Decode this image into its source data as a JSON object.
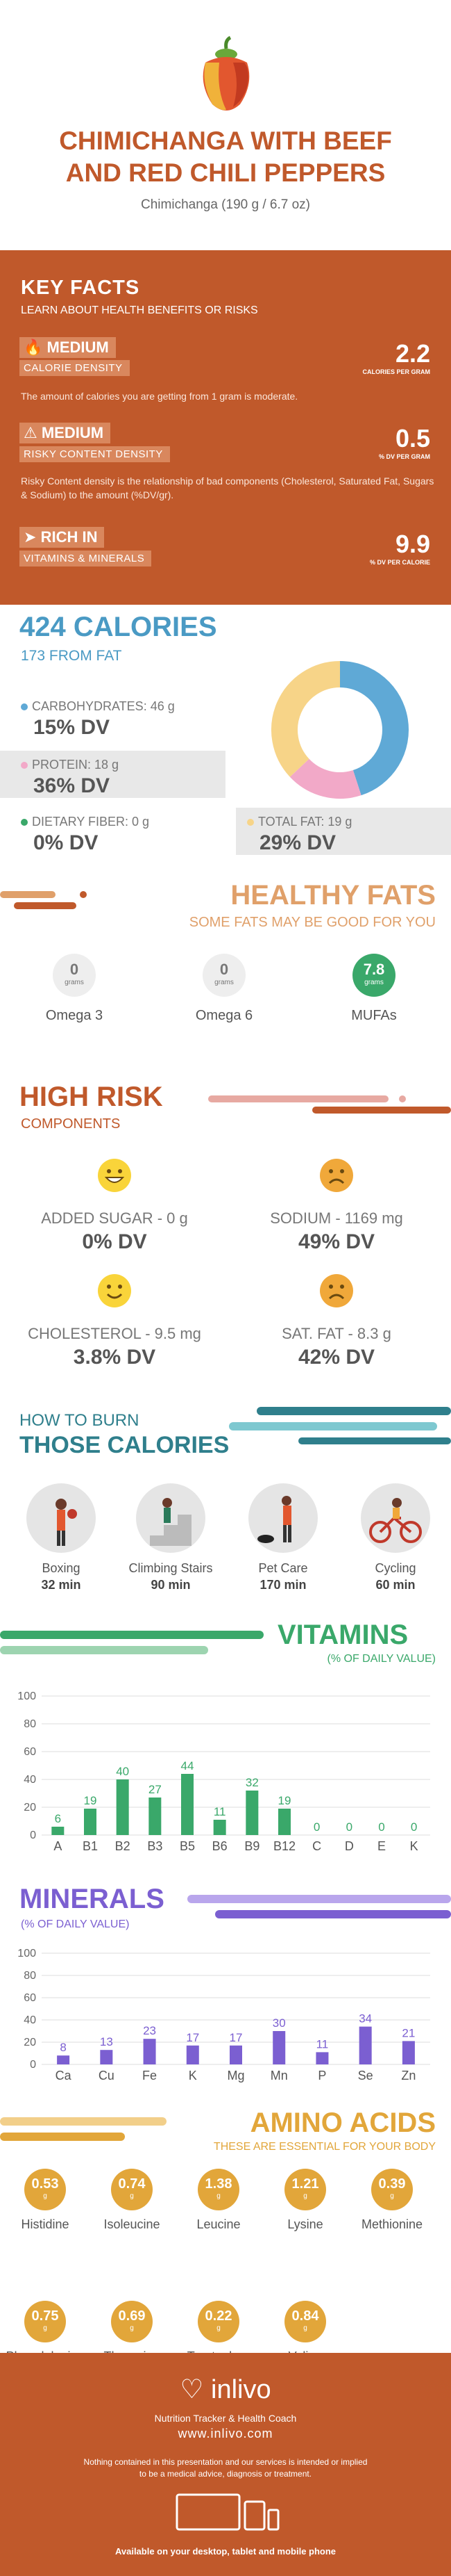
{
  "header": {
    "title_line1": "CHIMICHANGA WITH  BEEF",
    "title_line2": "AND RED CHILI PEPPERS",
    "subtitle": "Chimichanga (190 g / 6.7 oz)"
  },
  "key_facts": {
    "title": "KEY FACTS",
    "subtitle": "LEARN ABOUT HEALTH BENEFITS OR RISKS",
    "calorie": {
      "level": "MEDIUM",
      "label": "CALORIE DENSITY",
      "value": "2.2",
      "unit": "CALORIES PER GRAM",
      "desc": "The amount of calories you are getting from 1 gram is moderate."
    },
    "risky": {
      "level": "MEDIUM",
      "label": "RISKY CONTENT DENSITY",
      "value": "0.5",
      "unit": "% DV PER GRAM",
      "desc": "Risky Content density is the relationship of bad components (Cholesterol, Saturated Fat, Sugars & Sodium) to the amount (%DV/gr)."
    },
    "vitamins": {
      "level": "RICH  IN",
      "label": "VITAMINS & MINERALS",
      "value": "9.9",
      "unit": "% DV PER CALORIE"
    }
  },
  "calories": {
    "title": "424 CALORIES",
    "fat": "173 FROM FAT",
    "carbs_label": "CARBOHYDRATES: 46 g",
    "carbs_dv": "15% DV",
    "protein_label": "PROTEIN: 18 g",
    "protein_dv": "36% DV",
    "fiber_label": "DIETARY FIBER: 0 g",
    "fiber_dv": "0% DV",
    "fat_label": "TOTAL FAT: 19 g",
    "fat_dv": "29% DV",
    "donut": [
      {
        "name": "carbs",
        "value": 0.45,
        "color": "#5fa9d6"
      },
      {
        "name": "protein",
        "value": 0.18,
        "color": "#f2a9c8"
      },
      {
        "name": "fat",
        "value": 0.37,
        "color": "#f7d488"
      }
    ]
  },
  "healthy_fats": {
    "title": "HEALTHY FATS",
    "subtitle": "SOME FATS MAY BE GOOD FOR YOU",
    "items": [
      {
        "value": "0",
        "unit": "grams",
        "label": "Omega 3"
      },
      {
        "value": "0",
        "unit": "grams",
        "label": "Omega 6"
      },
      {
        "value": "7.8",
        "unit": "grams",
        "label": "MUFAs"
      }
    ]
  },
  "high_risk": {
    "title": "HIGH RISK",
    "subtitle": "COMPONENTS",
    "items": [
      {
        "label": "ADDED SUGAR - 0 g",
        "dv": "0% DV",
        "mood": "happy"
      },
      {
        "label": "SODIUM - 1169 mg",
        "dv": "49% DV",
        "mood": "sad"
      },
      {
        "label": "CHOLESTEROL - 9.5 mg",
        "dv": "3.8% DV",
        "mood": "smile"
      },
      {
        "label": "SAT. FAT - 8.3 g",
        "dv": "42% DV",
        "mood": "sad"
      }
    ]
  },
  "burn": {
    "title1": "HOW TO BURN",
    "title2": "THOSE CALORIES",
    "items": [
      {
        "label": "Boxing",
        "value": "32 min",
        "icon": "boxing-icon"
      },
      {
        "label": "Climbing Stairs",
        "value": "90 min",
        "icon": "stairs-icon"
      },
      {
        "label": "Pet Care",
        "value": "170 min",
        "icon": "pet-icon"
      },
      {
        "label": "Cycling",
        "value": "60 min",
        "icon": "cycling-icon"
      }
    ]
  },
  "vitamins": {
    "title": "VITAMINS",
    "subtitle": "(% OF DAILY VALUE)",
    "chart_data": {
      "type": "bar",
      "categories": [
        "A",
        "B1",
        "B2",
        "B3",
        "B5",
        "B6",
        "B9",
        "B12",
        "C",
        "D",
        "E",
        "K"
      ],
      "values": [
        6,
        19,
        40,
        27,
        44,
        11,
        32,
        19,
        0,
        0,
        0,
        0
      ],
      "ylim": [
        0,
        100
      ],
      "yticks": [
        0,
        20,
        40,
        60,
        80,
        100
      ],
      "color": "#3aa86a"
    }
  },
  "minerals": {
    "title": "MINERALS",
    "subtitle": "(% OF DAILY VALUE)",
    "chart_data": {
      "type": "bar",
      "categories": [
        "Ca",
        "Cu",
        "Fe",
        "K",
        "Mg",
        "Mn",
        "P",
        "Se",
        "Zn"
      ],
      "values": [
        8,
        13,
        23,
        17,
        17,
        30,
        11,
        34,
        21
      ],
      "ylim": [
        0,
        100
      ],
      "yticks": [
        0,
        20,
        40,
        60,
        80,
        100
      ],
      "color": "#7b5fd1"
    }
  },
  "amino": {
    "title": "AMINO ACIDS",
    "subtitle": "THESE ARE ESSENTIAL FOR YOUR BODY",
    "items": [
      {
        "value": "0.53",
        "label": "Histidine"
      },
      {
        "value": "0.74",
        "label": "Isoleucine"
      },
      {
        "value": "1.38",
        "label": "Leucine"
      },
      {
        "value": "1.21",
        "label": "Lysine"
      },
      {
        "value": "0.39",
        "label": "Methionine"
      },
      {
        "value": "0.75",
        "label": "Phenylalanine"
      },
      {
        "value": "0.69",
        "label": "Threonine"
      },
      {
        "value": "0.22",
        "label": "Tryptophan"
      },
      {
        "value": "0.84",
        "label": "Valine"
      }
    ],
    "unit": "g"
  },
  "footer": {
    "brand": "inlivo",
    "tagline": "Nutrition Tracker & Health Coach",
    "url": "www.inlivo.com",
    "disclaimer1": "Nothing contained in this presentation and our services is intended or implied",
    "disclaimer2": "to be a medical advice, diagnosis or treatment.",
    "available": "Available on your desktop, tablet and mobile phone"
  }
}
